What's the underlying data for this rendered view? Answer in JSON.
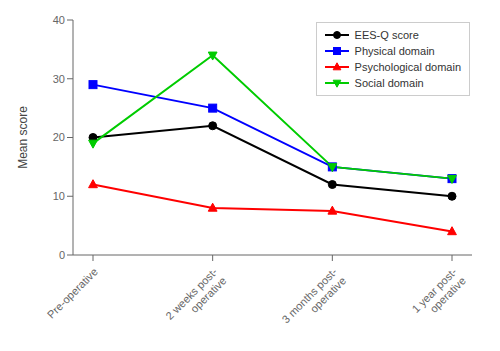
{
  "chart_data": {
    "type": "line",
    "categories": [
      "Pre-operative",
      "2 weeks post-\noperative",
      "3 months post-\noperative",
      "1 year post-\noperative"
    ],
    "series": [
      {
        "name": "EES-Q score",
        "color": "#000000",
        "marker": "circle",
        "values": [
          20,
          22,
          12,
          10
        ]
      },
      {
        "name": "Physical domain",
        "color": "#0000FF",
        "marker": "square",
        "values": [
          29,
          25,
          15,
          13
        ]
      },
      {
        "name": "Psychological domain",
        "color": "#FF0000",
        "marker": "triangle-up",
        "values": [
          12,
          8,
          7.5,
          4
        ]
      },
      {
        "name": "Social domain",
        "color": "#00CC00",
        "marker": "triangle-down",
        "values": [
          19,
          34,
          15,
          13
        ]
      }
    ],
    "ylabel": "Mean score",
    "ylim": [
      0,
      40
    ],
    "yticks": [
      0,
      10,
      20,
      30,
      40
    ],
    "grid": false,
    "legend": "upper right"
  }
}
